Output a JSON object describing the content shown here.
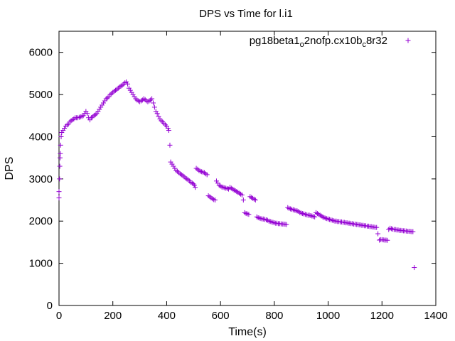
{
  "chart_data": {
    "type": "scatter",
    "title": "DPS vs Time for l.i1",
    "xlabel": "Time(s)",
    "ylabel": "DPS",
    "xlim": [
      0,
      1400
    ],
    "ylim": [
      0,
      6500
    ],
    "xticks": [
      0,
      200,
      400,
      600,
      800,
      1000,
      1200,
      1400
    ],
    "yticks": [
      0,
      1000,
      2000,
      3000,
      4000,
      5000,
      6000
    ],
    "grid": false,
    "legend_position": "top-right",
    "series": [
      {
        "legend_main": "pg18beta1",
        "legend_sub1": "o",
        "legend_mid": "2nofp.cx10b",
        "legend_sub2": "c",
        "legend_end": "8r32",
        "color": "#9400d3",
        "marker": "plus",
        "points": [
          [
            0,
            2550
          ],
          [
            0,
            2700
          ],
          [
            2,
            3000
          ],
          [
            3,
            3300
          ],
          [
            4,
            3500
          ],
          [
            5,
            3600
          ],
          [
            6,
            3800
          ],
          [
            8,
            4000
          ],
          [
            10,
            4100
          ],
          [
            15,
            4150
          ],
          [
            20,
            4200
          ],
          [
            25,
            4250
          ],
          [
            30,
            4280
          ],
          [
            35,
            4300
          ],
          [
            40,
            4350
          ],
          [
            45,
            4380
          ],
          [
            50,
            4400
          ],
          [
            55,
            4420
          ],
          [
            60,
            4450
          ],
          [
            65,
            4450
          ],
          [
            70,
            4450
          ],
          [
            75,
            4460
          ],
          [
            80,
            4470
          ],
          [
            85,
            4480
          ],
          [
            90,
            4500
          ],
          [
            95,
            4550
          ],
          [
            100,
            4600
          ],
          [
            105,
            4550
          ],
          [
            110,
            4450
          ],
          [
            115,
            4400
          ],
          [
            120,
            4450
          ],
          [
            125,
            4470
          ],
          [
            130,
            4500
          ],
          [
            135,
            4520
          ],
          [
            140,
            4550
          ],
          [
            145,
            4600
          ],
          [
            150,
            4650
          ],
          [
            155,
            4700
          ],
          [
            160,
            4750
          ],
          [
            165,
            4800
          ],
          [
            170,
            4850
          ],
          [
            175,
            4900
          ],
          [
            180,
            4920
          ],
          [
            185,
            4950
          ],
          [
            190,
            5000
          ],
          [
            195,
            5020
          ],
          [
            200,
            5050
          ],
          [
            205,
            5080
          ],
          [
            210,
            5100
          ],
          [
            215,
            5120
          ],
          [
            220,
            5150
          ],
          [
            225,
            5180
          ],
          [
            230,
            5200
          ],
          [
            235,
            5220
          ],
          [
            240,
            5250
          ],
          [
            245,
            5280
          ],
          [
            250,
            5300
          ],
          [
            255,
            5250
          ],
          [
            260,
            5150
          ],
          [
            265,
            5100
          ],
          [
            270,
            5050
          ],
          [
            275,
            5000
          ],
          [
            280,
            4950
          ],
          [
            285,
            4900
          ],
          [
            290,
            4870
          ],
          [
            295,
            4850
          ],
          [
            300,
            4830
          ],
          [
            305,
            4850
          ],
          [
            310,
            4870
          ],
          [
            315,
            4900
          ],
          [
            320,
            4880
          ],
          [
            325,
            4850
          ],
          [
            330,
            4830
          ],
          [
            335,
            4850
          ],
          [
            340,
            4870
          ],
          [
            345,
            4900
          ],
          [
            350,
            4800
          ],
          [
            355,
            4700
          ],
          [
            360,
            4600
          ],
          [
            365,
            4550
          ],
          [
            370,
            4480
          ],
          [
            375,
            4420
          ],
          [
            380,
            4380
          ],
          [
            385,
            4350
          ],
          [
            390,
            4320
          ],
          [
            395,
            4280
          ],
          [
            400,
            4250
          ],
          [
            405,
            4200
          ],
          [
            408,
            4150
          ],
          [
            412,
            3800
          ],
          [
            415,
            3400
          ],
          [
            420,
            3350
          ],
          [
            425,
            3300
          ],
          [
            430,
            3250
          ],
          [
            435,
            3200
          ],
          [
            440,
            3180
          ],
          [
            445,
            3150
          ],
          [
            450,
            3120
          ],
          [
            455,
            3100
          ],
          [
            460,
            3080
          ],
          [
            465,
            3050
          ],
          [
            470,
            3020
          ],
          [
            475,
            3000
          ],
          [
            480,
            2980
          ],
          [
            485,
            2950
          ],
          [
            490,
            2920
          ],
          [
            495,
            2900
          ],
          [
            500,
            2880
          ],
          [
            503,
            2850
          ],
          [
            506,
            2800
          ],
          [
            510,
            3250
          ],
          [
            515,
            3230
          ],
          [
            520,
            3200
          ],
          [
            525,
            3180
          ],
          [
            530,
            3170
          ],
          [
            535,
            3160
          ],
          [
            540,
            3150
          ],
          [
            545,
            3120
          ],
          [
            550,
            3100
          ],
          [
            555,
            2600
          ],
          [
            560,
            2580
          ],
          [
            565,
            2550
          ],
          [
            570,
            2530
          ],
          [
            575,
            2510
          ],
          [
            580,
            2500
          ],
          [
            585,
            2950
          ],
          [
            590,
            2900
          ],
          [
            595,
            2850
          ],
          [
            600,
            2830
          ],
          [
            605,
            2810
          ],
          [
            610,
            2800
          ],
          [
            615,
            2790
          ],
          [
            620,
            2780
          ],
          [
            625,
            2770
          ],
          [
            630,
            2760
          ],
          [
            635,
            2800
          ],
          [
            640,
            2780
          ],
          [
            645,
            2760
          ],
          [
            650,
            2740
          ],
          [
            655,
            2720
          ],
          [
            660,
            2700
          ],
          [
            665,
            2680
          ],
          [
            670,
            2660
          ],
          [
            675,
            2640
          ],
          [
            680,
            2620
          ],
          [
            685,
            2500
          ],
          [
            690,
            2200
          ],
          [
            695,
            2180
          ],
          [
            700,
            2170
          ],
          [
            705,
            2160
          ],
          [
            710,
            2580
          ],
          [
            715,
            2560
          ],
          [
            720,
            2540
          ],
          [
            725,
            2520
          ],
          [
            730,
            2500
          ],
          [
            735,
            2100
          ],
          [
            740,
            2080
          ],
          [
            745,
            2070
          ],
          [
            750,
            2060
          ],
          [
            755,
            2050
          ],
          [
            760,
            2050
          ],
          [
            765,
            2040
          ],
          [
            770,
            2030
          ],
          [
            775,
            2020
          ],
          [
            780,
            2000
          ],
          [
            785,
            1990
          ],
          [
            790,
            1980
          ],
          [
            795,
            1970
          ],
          [
            800,
            1960
          ],
          [
            805,
            1950
          ],
          [
            810,
            1950
          ],
          [
            815,
            1940
          ],
          [
            820,
            1940
          ],
          [
            825,
            1935
          ],
          [
            830,
            1930
          ],
          [
            835,
            1930
          ],
          [
            840,
            1925
          ],
          [
            845,
            1920
          ],
          [
            850,
            2320
          ],
          [
            855,
            2300
          ],
          [
            860,
            2290
          ],
          [
            865,
            2280
          ],
          [
            870,
            2270
          ],
          [
            875,
            2260
          ],
          [
            880,
            2250
          ],
          [
            885,
            2240
          ],
          [
            890,
            2230
          ],
          [
            895,
            2200
          ],
          [
            900,
            2190
          ],
          [
            905,
            2180
          ],
          [
            910,
            2170
          ],
          [
            915,
            2160
          ],
          [
            920,
            2150
          ],
          [
            925,
            2140
          ],
          [
            930,
            2140
          ],
          [
            935,
            2130
          ],
          [
            940,
            2120
          ],
          [
            945,
            2110
          ],
          [
            950,
            2100
          ],
          [
            955,
            2200
          ],
          [
            960,
            2180
          ],
          [
            965,
            2160
          ],
          [
            970,
            2140
          ],
          [
            975,
            2120
          ],
          [
            980,
            2100
          ],
          [
            985,
            2080
          ],
          [
            990,
            2070
          ],
          [
            995,
            2060
          ],
          [
            1000,
            2050
          ],
          [
            1005,
            2040
          ],
          [
            1010,
            2030
          ],
          [
            1015,
            2020
          ],
          [
            1020,
            2010
          ],
          [
            1025,
            2000
          ],
          [
            1030,
            2000
          ],
          [
            1035,
            1990
          ],
          [
            1040,
            1990
          ],
          [
            1045,
            1980
          ],
          [
            1050,
            1980
          ],
          [
            1055,
            1970
          ],
          [
            1060,
            1970
          ],
          [
            1065,
            1960
          ],
          [
            1070,
            1960
          ],
          [
            1075,
            1950
          ],
          [
            1080,
            1950
          ],
          [
            1085,
            1940
          ],
          [
            1090,
            1940
          ],
          [
            1095,
            1930
          ],
          [
            1100,
            1930
          ],
          [
            1105,
            1920
          ],
          [
            1110,
            1920
          ],
          [
            1115,
            1910
          ],
          [
            1120,
            1910
          ],
          [
            1125,
            1900
          ],
          [
            1130,
            1900
          ],
          [
            1135,
            1890
          ],
          [
            1140,
            1890
          ],
          [
            1145,
            1880
          ],
          [
            1150,
            1880
          ],
          [
            1155,
            1870
          ],
          [
            1160,
            1870
          ],
          [
            1165,
            1860
          ],
          [
            1170,
            1860
          ],
          [
            1175,
            1850
          ],
          [
            1180,
            1850
          ],
          [
            1185,
            1700
          ],
          [
            1190,
            1550
          ],
          [
            1195,
            1560
          ],
          [
            1200,
            1560
          ],
          [
            1205,
            1555
          ],
          [
            1210,
            1550
          ],
          [
            1215,
            1550
          ],
          [
            1220,
            1545
          ],
          [
            1225,
            1800
          ],
          [
            1230,
            1830
          ],
          [
            1235,
            1820
          ],
          [
            1240,
            1810
          ],
          [
            1245,
            1800
          ],
          [
            1250,
            1800
          ],
          [
            1255,
            1790
          ],
          [
            1260,
            1790
          ],
          [
            1265,
            1780
          ],
          [
            1270,
            1780
          ],
          [
            1275,
            1775
          ],
          [
            1280,
            1770
          ],
          [
            1285,
            1770
          ],
          [
            1290,
            1765
          ],
          [
            1295,
            1760
          ],
          [
            1300,
            1760
          ],
          [
            1305,
            1755
          ],
          [
            1310,
            1750
          ],
          [
            1315,
            1750
          ],
          [
            1320,
            900
          ]
        ]
      }
    ]
  }
}
